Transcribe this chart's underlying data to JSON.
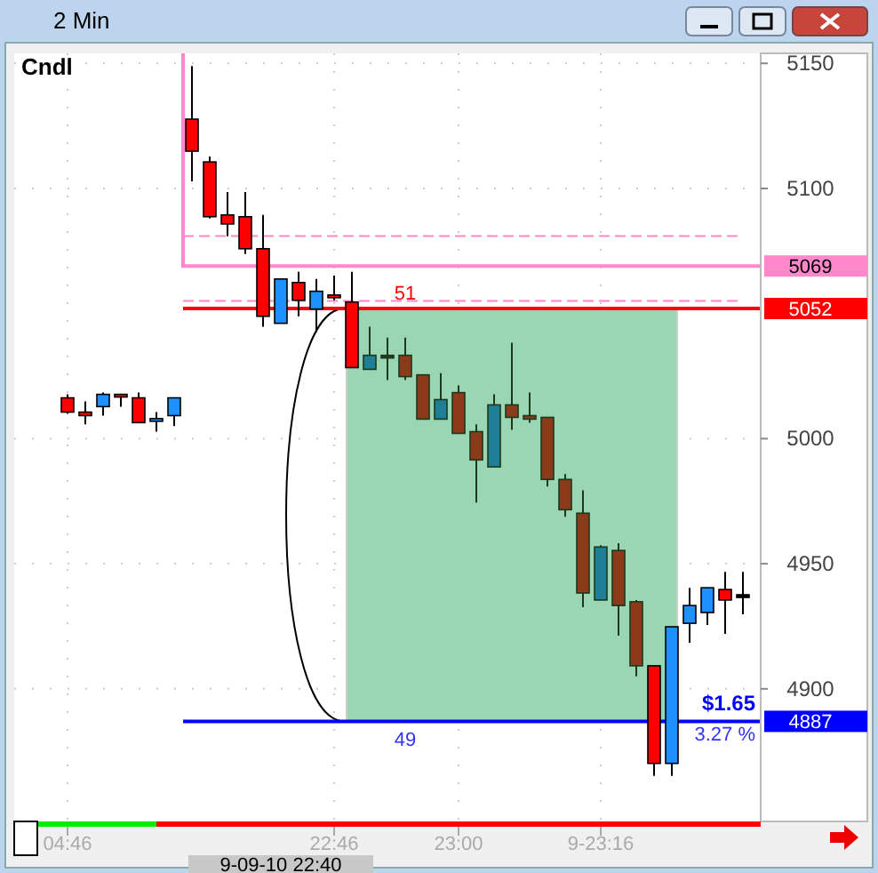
{
  "chart_data": {
    "type": "candlestick",
    "title": "2 Min",
    "categories": [
      "04:46",
      null,
      null,
      null,
      null,
      null,
      null,
      null,
      null,
      null,
      null,
      null,
      null,
      null,
      null,
      "22:46",
      null,
      null,
      null,
      null,
      null,
      null,
      "23:00",
      null,
      null,
      null,
      null,
      null,
      null,
      null,
      "9-23:16",
      null,
      null,
      null,
      null,
      null,
      null,
      null,
      null
    ],
    "ohlc": [
      [
        5016.3,
        5017.7,
        5009.9,
        5010.6
      ],
      [
        5010.6,
        5014.9,
        5005.7,
        5009.2
      ],
      [
        5012.8,
        5018.4,
        5009.2,
        5017.7
      ],
      [
        5017.7,
        5017.7,
        5012.8,
        5017.0
      ],
      [
        5016.3,
        5018.4,
        5006.4,
        5006.4
      ],
      [
        5007.4,
        5010.6,
        5002.8,
        5008.0
      ],
      [
        5009.2,
        5016.3,
        5005.0,
        5016.3
      ],
      [
        5127.7,
        5148.9,
        5102.8,
        5114.9
      ],
      [
        5110.6,
        5112.8,
        5088.0,
        5088.7
      ],
      [
        5089.4,
        5098.6,
        5080.9,
        5085.8
      ],
      [
        5088.7,
        5098.6,
        5073.8,
        5075.9
      ],
      [
        5075.9,
        5089.4,
        5044.7,
        5048.9
      ],
      [
        5046.1,
        5063.8,
        5046.1,
        5063.8
      ],
      [
        5062.4,
        5066.7,
        5048.9,
        5055.3
      ],
      [
        5051.8,
        5063.8,
        5042.6,
        5058.9
      ],
      [
        5057.4,
        5065.2,
        5055.3,
        5056.7
      ],
      [
        5054.6,
        5066.7,
        5028.4,
        5028.4
      ],
      [
        5027.7,
        5044.7,
        5027.7,
        5033.3
      ],
      [
        5033.3,
        5040.4,
        5023.4,
        5033.3
      ],
      [
        5033.3,
        5040.4,
        5023.4,
        5024.8
      ],
      [
        5025.5,
        5025.5,
        5007.8,
        5007.8
      ],
      [
        5007.8,
        5026.2,
        5007.8,
        5015.6
      ],
      [
        5018.4,
        5021.3,
        5002.1,
        5002.1
      ],
      [
        5002.8,
        5005.7,
        4974.5,
        4991.5
      ],
      [
        4988.7,
        5017.7,
        4988.7,
        5013.5
      ],
      [
        5013.5,
        5038.3,
        5003.5,
        5008.5
      ],
      [
        5009.2,
        5018.4,
        5006.4,
        5007.8
      ],
      [
        5008.5,
        5008.5,
        4980.9,
        4983.7
      ],
      [
        4983.7,
        4985.8,
        4968.8,
        4971.6
      ],
      [
        4970.2,
        4979.4,
        4932.6,
        4938.3
      ],
      [
        4935.5,
        4957.4,
        4935.5,
        4956.7
      ],
      [
        4955.3,
        4958.2,
        4921.3,
        4933.3
      ],
      [
        4934.8,
        4935.5,
        4905.0,
        4909.2
      ],
      [
        4909.2,
        4909.2,
        4865.2,
        4870.2
      ],
      [
        4870.2,
        4924.8,
        4865.2,
        4924.8
      ],
      [
        4926.2,
        4940.4,
        4918.4,
        4933.3
      ],
      [
        4930.5,
        4940.4,
        4925.5,
        4940.4
      ],
      [
        4939.7,
        4946.8,
        4922.0,
        4935.5
      ],
      [
        4937.6,
        4946.8,
        4929.8,
        4937.6
      ]
    ],
    "colors": [
      "#ff0000",
      "#ff0000",
      "#1e90ff",
      "#ff0000",
      "#ff0000",
      "#1e90ff",
      "#1e90ff",
      "#ff0000",
      "#ff0000",
      "#ff0000",
      "#ff0000",
      "#ff0000",
      "#1e90ff",
      "#ff0000",
      "#1e90ff",
      "#ff0000",
      "#ff0000",
      "#1e7f96",
      "#2a3a2a",
      "#8b3a1a",
      "#8b3a1a",
      "#1e7f96",
      "#8b3a1a",
      "#8b3a1a",
      "#1e7f96",
      "#8b3a1a",
      "#8b3a1a",
      "#8b3a1a",
      "#8b3a1a",
      "#8b3a1a",
      "#1e7f96",
      "#8b3a1a",
      "#8b3a1a",
      "#ff0000",
      "#1e90ff",
      "#1e90ff",
      "#1e90ff",
      "#ff0000",
      "#000000"
    ],
    "ylim": [
      4847,
      5154
    ],
    "yticks": [
      4900,
      4950,
      5000,
      5100,
      5150
    ],
    "grid": true,
    "ref_lines": [
      {
        "axis": "y",
        "value": 5081,
        "color": "#ff88cc",
        "line_style": "dashed"
      },
      {
        "axis": "y",
        "value": 5055,
        "color": "#ff88cc",
        "line_style": "dashed"
      },
      {
        "axis": "y",
        "value": 5069,
        "label": "5069",
        "color": "#ff88cc",
        "line_style": "solid"
      },
      {
        "axis": "y",
        "value": 5052,
        "label": "5052",
        "color": "#ff0000",
        "line_style": "solid"
      },
      {
        "axis": "y",
        "value": 4887,
        "label": "4887",
        "color": "#0000ff",
        "line_style": "solid"
      }
    ],
    "bands": [
      {
        "axis": "y",
        "from": 4887,
        "to": 5052,
        "color": "#9ad6b4"
      }
    ],
    "annotations": [
      "Cndl",
      {
        "text": "51",
        "y": 5052
      },
      {
        "text": "49",
        "y": 4887
      },
      {
        "text": "$1.65",
        "y": 4887
      },
      {
        "text": "3.27 %",
        "y": 4887
      },
      "9-09-10 22:40"
    ]
  }
}
